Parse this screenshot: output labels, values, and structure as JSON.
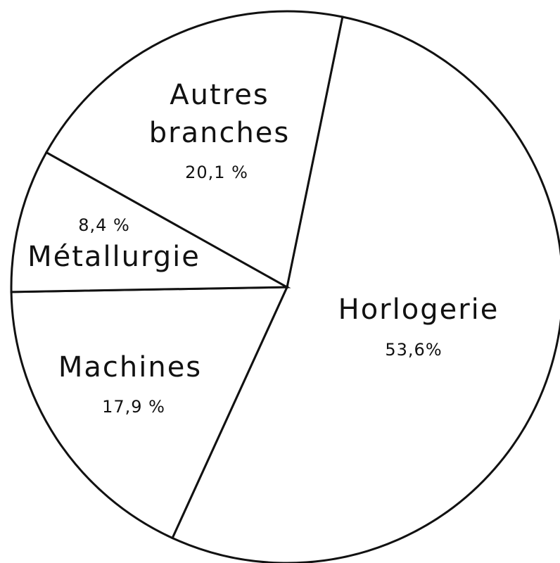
{
  "chart_data": {
    "type": "pie",
    "categories": [
      "Horlogerie",
      "Machines",
      "Métallurgie",
      "Autres branches"
    ],
    "values": [
      53.6,
      17.9,
      8.4,
      20.1
    ],
    "value_labels": [
      "53,6%",
      "17,9 %",
      "8,4 %",
      "20,1 %"
    ],
    "color": "#ffffff"
  }
}
